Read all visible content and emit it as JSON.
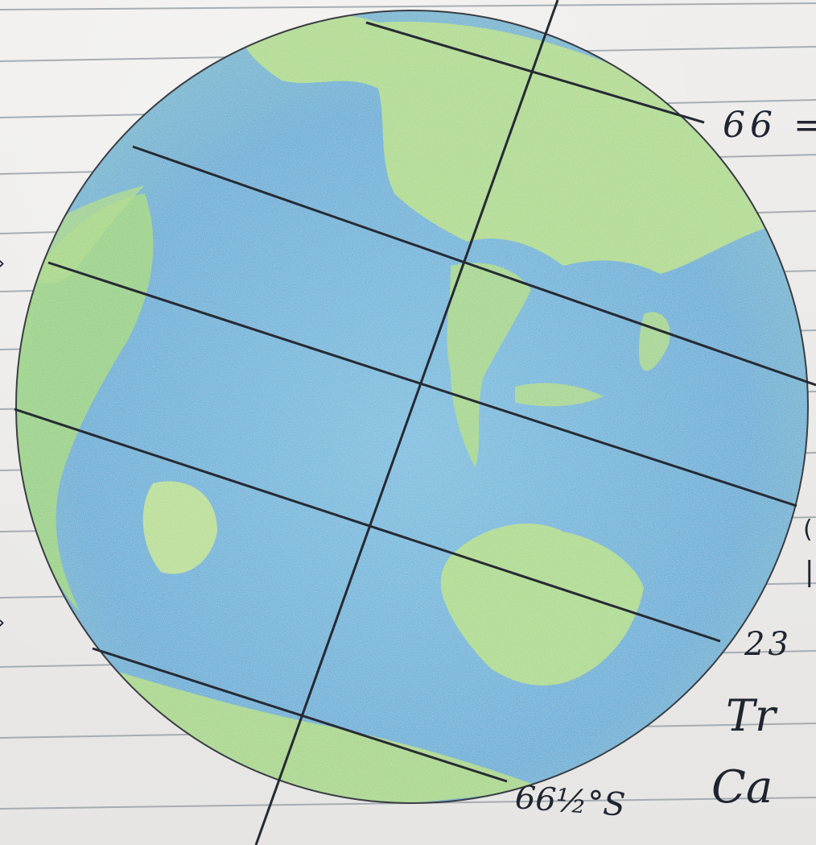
{
  "drawing": {
    "labels": {
      "arctic_circle": "66 =",
      "tropic_degrees": "23",
      "tropic_word": "Tr",
      "capricorn_word": "Ca",
      "antarctic_circle": "66½°S"
    }
  },
  "colors": {
    "paper": "#ecebe9",
    "ruled_line": "#9aa3aa",
    "ocean": "#4ea9d6",
    "land": "#a6d86c",
    "ink": "#2a2d36"
  },
  "icons": {
    "globe": "globe-drawing"
  }
}
